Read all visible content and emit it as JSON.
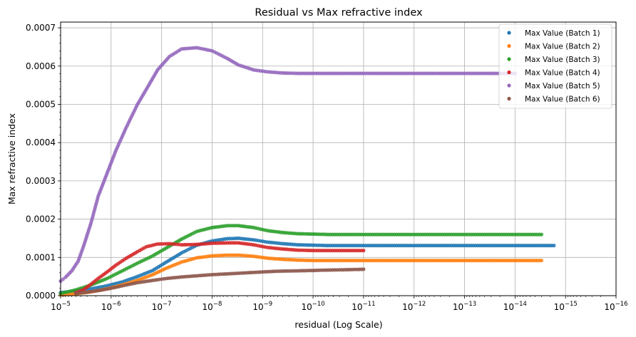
{
  "chart_data": {
    "type": "scatter",
    "title": "Residual vs Max refractive index",
    "xlabel": "residual (Log Scale)",
    "ylabel": "Max refractive index",
    "x_scale": "log",
    "x_inverted": true,
    "xlim": [
      1e-05,
      1e-16
    ],
    "ylim": [
      0,
      0.000715
    ],
    "x_tick_exponents": [
      -5,
      -6,
      -7,
      -8,
      -9,
      -10,
      -11,
      -12,
      -13,
      -14,
      -15,
      -16
    ],
    "x_tick_base": "10",
    "y_ticks": [
      0,
      0.0001,
      0.0002,
      0.0003,
      0.0004,
      0.0005,
      0.0006,
      0.0007
    ],
    "y_tick_labels": [
      "0.0000",
      "0.0001",
      "0.0002",
      "0.0003",
      "0.0004",
      "0.0005",
      "0.0006",
      "0.0007"
    ],
    "grid": true,
    "legend_position": "top-right",
    "series": [
      {
        "name": "Max Value (Batch 1)",
        "color": "#1f77b4",
        "points": [
          [
            1e-05,
            8e-06
          ],
          [
            5e-06,
            1.2e-05
          ],
          [
            2.5e-06,
            1.8e-05
          ],
          [
            1.2e-06,
            2.6e-05
          ],
          [
            6e-07,
            3.6e-05
          ],
          [
            3e-07,
            5e-05
          ],
          [
            1.5e-07,
            6.6e-05
          ],
          [
            8e-08,
            8.8e-05
          ],
          [
            4e-08,
            0.000112
          ],
          [
            2e-08,
            0.000132
          ],
          [
            1e-08,
            0.000143
          ],
          [
            5e-09,
            0.000149
          ],
          [
            3e-09,
            0.00015
          ],
          [
            1.5e-09,
            0.000146
          ],
          [
            8e-10,
            0.00014
          ],
          [
            4e-10,
            0.000136
          ],
          [
            2e-10,
            0.000133
          ],
          [
            1e-10,
            0.000132
          ],
          [
            5e-11,
            0.000131
          ],
          [
            1e-11,
            0.000131
          ],
          [
            1e-12,
            0.000131
          ],
          [
            1e-13,
            0.000131
          ],
          [
            1e-14,
            0.000131
          ],
          [
            1.7e-15,
            0.000131
          ]
        ]
      },
      {
        "name": "Max Value (Batch 2)",
        "color": "#ff7f0e",
        "points": [
          [
            1e-05,
            2e-06
          ],
          [
            5e-06,
            5e-06
          ],
          [
            2.5e-06,
            1e-05
          ],
          [
            1.2e-06,
            1.8e-05
          ],
          [
            6e-07,
            2.8e-05
          ],
          [
            3e-07,
            4e-05
          ],
          [
            1.5e-07,
            5.5e-05
          ],
          [
            8e-08,
            7.2e-05
          ],
          [
            4e-08,
            8.8e-05
          ],
          [
            2e-08,
            9.9e-05
          ],
          [
            1e-08,
            0.000104
          ],
          [
            5e-09,
            0.000106
          ],
          [
            3e-09,
            0.000106
          ],
          [
            1.5e-09,
            0.000103
          ],
          [
            8e-10,
            9.8e-05
          ],
          [
            4e-10,
            9.5e-05
          ],
          [
            2e-10,
            9.3e-05
          ],
          [
            1e-10,
            9.2e-05
          ],
          [
            5e-11,
            9.2e-05
          ],
          [
            1e-11,
            9.2e-05
          ],
          [
            1e-12,
            9.2e-05
          ],
          [
            1e-13,
            9.2e-05
          ],
          [
            1e-14,
            9.2e-05
          ],
          [
            3e-15,
            9.2e-05
          ]
        ]
      },
      {
        "name": "Max Value (Batch 3)",
        "color": "#2ca02c",
        "points": [
          [
            1e-05,
            6e-06
          ],
          [
            5e-06,
            1.5e-05
          ],
          [
            2.5e-06,
            2.8e-05
          ],
          [
            1.2e-06,
            4.5e-05
          ],
          [
            6e-07,
            6.5e-05
          ],
          [
            3e-07,
            8.5e-05
          ],
          [
            1.5e-07,
            0.000104
          ],
          [
            8e-08,
            0.000125
          ],
          [
            4e-08,
            0.000148
          ],
          [
            2e-08,
            0.000168
          ],
          [
            1e-08,
            0.000178
          ],
          [
            5e-09,
            0.000183
          ],
          [
            3e-09,
            0.000183
          ],
          [
            1.5e-09,
            0.000178
          ],
          [
            8e-10,
            0.00017
          ],
          [
            4e-10,
            0.000165
          ],
          [
            2e-10,
            0.000162
          ],
          [
            1e-10,
            0.000161
          ],
          [
            5e-11,
            0.00016
          ],
          [
            1e-11,
            0.00016
          ],
          [
            1e-12,
            0.00016
          ],
          [
            1e-13,
            0.00016
          ],
          [
            1e-14,
            0.00016
          ],
          [
            3e-15,
            0.00016
          ]
        ]
      },
      {
        "name": "Max Value (Batch 4)",
        "color": "#d62728",
        "points": [
          [
            5e-06,
            8e-06
          ],
          [
            3.5e-06,
            1.6e-05
          ],
          [
            2.5e-06,
            3e-05
          ],
          [
            1.8e-06,
            4.5e-05
          ],
          [
            1.2e-06,
            6.2e-05
          ],
          [
            8e-07,
            8e-05
          ],
          [
            5e-07,
            9.8e-05
          ],
          [
            3e-07,
            0.000115
          ],
          [
            2e-07,
            0.000128
          ],
          [
            1.2e-07,
            0.000135
          ],
          [
            7e-08,
            0.000136
          ],
          [
            4e-08,
            0.000133
          ],
          [
            2e-08,
            0.000134
          ],
          [
            1e-08,
            0.000137
          ],
          [
            5e-09,
            0.000138
          ],
          [
            3e-09,
            0.000138
          ],
          [
            1.5e-09,
            0.000133
          ],
          [
            8e-10,
            0.000126
          ],
          [
            4e-10,
            0.000122
          ],
          [
            2e-10,
            0.000119
          ],
          [
            1e-10,
            0.000118
          ],
          [
            5e-11,
            0.000118
          ],
          [
            1e-11,
            0.000118
          ]
        ]
      },
      {
        "name": "Max Value (Batch 5)",
        "color": "#9467bd",
        "points": [
          [
            1e-05,
            3.8e-05
          ],
          [
            8e-06,
            4.8e-05
          ],
          [
            6e-06,
            6.5e-05
          ],
          [
            4.5e-06,
            9e-05
          ],
          [
            3.5e-06,
            0.00013
          ],
          [
            2.5e-06,
            0.00019
          ],
          [
            1.8e-06,
            0.00026
          ],
          [
            1.2e-06,
            0.00032
          ],
          [
            8e-07,
            0.00038
          ],
          [
            5e-07,
            0.00044
          ],
          [
            3e-07,
            0.0005
          ],
          [
            1.8e-07,
            0.00055
          ],
          [
            1.2e-07,
            0.00059
          ],
          [
            7e-08,
            0.000625
          ],
          [
            4e-08,
            0.000645
          ],
          [
            2e-08,
            0.000648
          ],
          [
            1e-08,
            0.00064
          ],
          [
            5e-09,
            0.00062
          ],
          [
            3e-09,
            0.000603
          ],
          [
            1.5e-09,
            0.00059
          ],
          [
            8e-10,
            0.000585
          ],
          [
            4e-10,
            0.000582
          ],
          [
            2e-10,
            0.000581
          ],
          [
            1e-10,
            0.000581
          ],
          [
            1e-11,
            0.000581
          ],
          [
            1e-12,
            0.000581
          ],
          [
            1e-13,
            0.000581
          ],
          [
            3e-14,
            0.000581
          ],
          [
            1e-14,
            0.000581
          ]
        ]
      },
      {
        "name": "Max Value (Batch 6)",
        "color": "#8c564b",
        "points": [
          [
            5e-06,
            6e-06
          ],
          [
            3e-06,
            9e-06
          ],
          [
            1.5e-06,
            1.5e-05
          ],
          [
            8e-07,
            2.2e-05
          ],
          [
            5e-07,
            2.8e-05
          ],
          [
            3e-07,
            3.4e-05
          ],
          [
            1.5e-07,
            4e-05
          ],
          [
            8e-08,
            4.5e-05
          ],
          [
            4e-08,
            4.9e-05
          ],
          [
            2e-08,
            5.2e-05
          ],
          [
            1e-08,
            5.5e-05
          ],
          [
            5e-09,
            5.7e-05
          ],
          [
            2e-09,
            6e-05
          ],
          [
            1e-09,
            6.2e-05
          ],
          [
            5e-10,
            6.4e-05
          ],
          [
            2e-10,
            6.5e-05
          ],
          [
            1e-10,
            6.6e-05
          ],
          [
            5e-11,
            6.7e-05
          ],
          [
            2e-11,
            6.8e-05
          ],
          [
            1e-11,
            6.9e-05
          ]
        ]
      }
    ]
  }
}
